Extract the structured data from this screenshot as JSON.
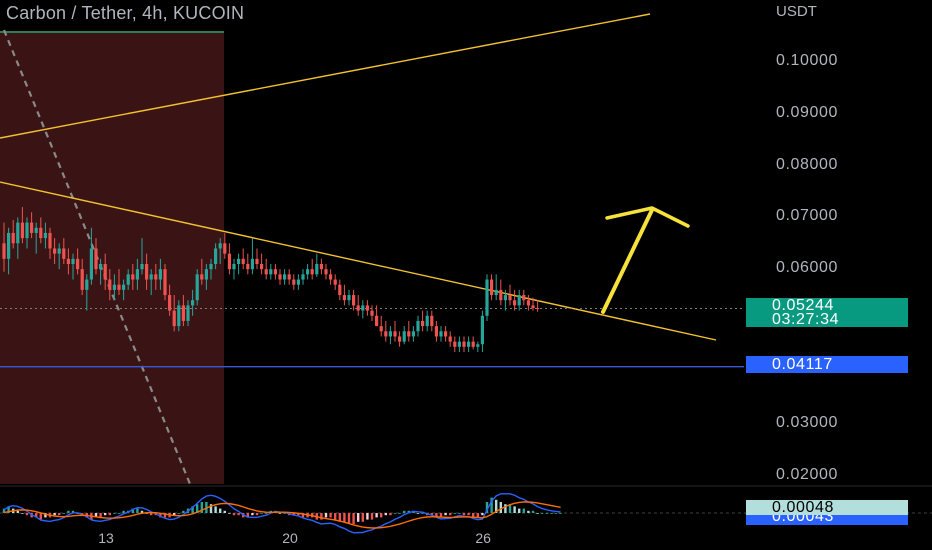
{
  "header": {
    "title": "Carbon / Tether, 4h, KUCOIN",
    "unit": "USDT"
  },
  "colors": {
    "background": "#000000",
    "up": "#26a69a",
    "down": "#ef5350",
    "zone": "#3a1414",
    "zone_top_line": "#2e7d5a",
    "trendline": "#f2c230",
    "arrow": "#f6e23a",
    "support": "#3955d8",
    "price_badge": "#089981",
    "support_badge": "#2962ff",
    "macd": "#2962ff",
    "signal": "#ff6d00"
  },
  "chart_data": {
    "type": "candlestick",
    "title": "Carbon / Tether, 4h, KUCOIN",
    "ylabel": "USDT",
    "ylim": [
      0.0185,
      0.112
    ],
    "y_ticks": [
      "0.10000",
      "0.09000",
      "0.08000",
      "0.07000",
      "0.06000",
      "0.03000",
      "0.02000"
    ],
    "y_tick_values": [
      0.1,
      0.09,
      0.08,
      0.07,
      0.06,
      0.03,
      0.02
    ],
    "x_ticks": [
      "13",
      "20",
      "26"
    ],
    "x_tick_bars": [
      22,
      62,
      104
    ],
    "bars_visible": 126,
    "last_price": {
      "value": "0.05244",
      "countdown": "03:27:34"
    },
    "support_level": {
      "value": "0.04117",
      "level": 0.04117
    },
    "candles": [
      [
        0.065,
        0.069,
        0.0595,
        0.062
      ],
      [
        0.062,
        0.068,
        0.059,
        0.067
      ],
      [
        0.067,
        0.0695,
        0.064,
        0.065
      ],
      [
        0.065,
        0.07,
        0.062,
        0.069
      ],
      [
        0.069,
        0.072,
        0.065,
        0.066
      ],
      [
        0.066,
        0.07,
        0.064,
        0.069
      ],
      [
        0.069,
        0.071,
        0.066,
        0.067
      ],
      [
        0.067,
        0.069,
        0.063,
        0.068
      ],
      [
        0.068,
        0.07,
        0.065,
        0.066
      ],
      [
        0.066,
        0.069,
        0.064,
        0.067
      ],
      [
        0.067,
        0.068,
        0.062,
        0.064
      ],
      [
        0.064,
        0.066,
        0.061,
        0.063
      ],
      [
        0.063,
        0.065,
        0.06,
        0.064
      ],
      [
        0.064,
        0.066,
        0.061,
        0.062
      ],
      [
        0.062,
        0.064,
        0.059,
        0.061
      ],
      [
        0.061,
        0.063,
        0.058,
        0.062
      ],
      [
        0.062,
        0.064,
        0.059,
        0.06
      ],
      [
        0.06,
        0.062,
        0.055,
        0.056
      ],
      [
        0.056,
        0.059,
        0.052,
        0.058
      ],
      [
        0.058,
        0.068,
        0.057,
        0.064
      ],
      [
        0.064,
        0.066,
        0.059,
        0.06
      ],
      [
        0.06,
        0.062,
        0.057,
        0.061
      ],
      [
        0.061,
        0.063,
        0.056,
        0.058
      ],
      [
        0.058,
        0.06,
        0.054,
        0.056
      ],
      [
        0.056,
        0.059,
        0.054,
        0.057
      ],
      [
        0.057,
        0.06,
        0.055,
        0.056
      ],
      [
        0.056,
        0.058,
        0.054,
        0.057
      ],
      [
        0.057,
        0.06,
        0.056,
        0.059
      ],
      [
        0.059,
        0.061,
        0.056,
        0.058
      ],
      [
        0.058,
        0.062,
        0.056,
        0.06
      ],
      [
        0.06,
        0.066,
        0.059,
        0.061
      ],
      [
        0.061,
        0.063,
        0.056,
        0.058
      ],
      [
        0.058,
        0.06,
        0.055,
        0.059
      ],
      [
        0.059,
        0.061,
        0.056,
        0.058
      ],
      [
        0.058,
        0.062,
        0.056,
        0.06
      ],
      [
        0.06,
        0.061,
        0.054,
        0.055
      ],
      [
        0.055,
        0.057,
        0.051,
        0.052
      ],
      [
        0.052,
        0.055,
        0.048,
        0.049
      ],
      [
        0.049,
        0.054,
        0.048,
        0.053
      ],
      [
        0.053,
        0.055,
        0.049,
        0.05
      ],
      [
        0.05,
        0.054,
        0.049,
        0.053
      ],
      [
        0.053,
        0.056,
        0.051,
        0.054
      ],
      [
        0.054,
        0.06,
        0.053,
        0.059
      ],
      [
        0.059,
        0.062,
        0.057,
        0.058
      ],
      [
        0.058,
        0.061,
        0.056,
        0.06
      ],
      [
        0.06,
        0.062,
        0.058,
        0.061
      ],
      [
        0.061,
        0.065,
        0.06,
        0.064
      ],
      [
        0.064,
        0.066,
        0.061,
        0.065
      ],
      [
        0.065,
        0.067,
        0.062,
        0.063
      ],
      [
        0.063,
        0.065,
        0.059,
        0.06
      ],
      [
        0.06,
        0.062,
        0.058,
        0.061
      ],
      [
        0.061,
        0.063,
        0.059,
        0.062
      ],
      [
        0.062,
        0.064,
        0.06,
        0.061
      ],
      [
        0.061,
        0.063,
        0.059,
        0.06
      ],
      [
        0.06,
        0.066,
        0.059,
        0.062
      ],
      [
        0.062,
        0.064,
        0.06,
        0.061
      ],
      [
        0.061,
        0.063,
        0.059,
        0.06
      ],
      [
        0.06,
        0.062,
        0.058,
        0.059
      ],
      [
        0.059,
        0.061,
        0.058,
        0.06
      ],
      [
        0.06,
        0.061,
        0.058,
        0.059
      ],
      [
        0.059,
        0.06,
        0.057,
        0.058
      ],
      [
        0.058,
        0.06,
        0.057,
        0.059
      ],
      [
        0.059,
        0.06,
        0.057,
        0.058
      ],
      [
        0.058,
        0.059,
        0.056,
        0.057
      ],
      [
        0.057,
        0.059,
        0.056,
        0.058
      ],
      [
        0.058,
        0.06,
        0.057,
        0.059
      ],
      [
        0.059,
        0.061,
        0.058,
        0.06
      ],
      [
        0.06,
        0.062,
        0.058,
        0.059
      ],
      [
        0.059,
        0.063,
        0.0585,
        0.061
      ],
      [
        0.061,
        0.062,
        0.059,
        0.06
      ],
      [
        0.06,
        0.061,
        0.058,
        0.059
      ],
      [
        0.059,
        0.06,
        0.057,
        0.058
      ],
      [
        0.058,
        0.059,
        0.056,
        0.057
      ],
      [
        0.057,
        0.058,
        0.054,
        0.055
      ],
      [
        0.055,
        0.057,
        0.053,
        0.054
      ],
      [
        0.054,
        0.056,
        0.053,
        0.055
      ],
      [
        0.055,
        0.056,
        0.052,
        0.053
      ],
      [
        0.053,
        0.055,
        0.051,
        0.052
      ],
      [
        0.052,
        0.054,
        0.0505,
        0.053
      ],
      [
        0.053,
        0.054,
        0.051,
        0.052
      ],
      [
        0.052,
        0.053,
        0.05,
        0.051
      ],
      [
        0.051,
        0.053,
        0.049,
        0.049
      ],
      [
        0.049,
        0.051,
        0.047,
        0.048
      ],
      [
        0.048,
        0.05,
        0.046,
        0.047
      ],
      [
        0.047,
        0.049,
        0.0455,
        0.048
      ],
      [
        0.048,
        0.05,
        0.046,
        0.047
      ],
      [
        0.047,
        0.048,
        0.045,
        0.046
      ],
      [
        0.046,
        0.049,
        0.0455,
        0.048
      ],
      [
        0.048,
        0.05,
        0.046,
        0.047
      ],
      [
        0.047,
        0.049,
        0.046,
        0.048
      ],
      [
        0.048,
        0.051,
        0.047,
        0.05
      ],
      [
        0.05,
        0.052,
        0.048,
        0.049
      ],
      [
        0.049,
        0.052,
        0.048,
        0.051
      ],
      [
        0.051,
        0.052,
        0.048,
        0.049
      ],
      [
        0.049,
        0.05,
        0.046,
        0.047
      ],
      [
        0.047,
        0.049,
        0.046,
        0.048
      ],
      [
        0.048,
        0.049,
        0.046,
        0.047
      ],
      [
        0.047,
        0.048,
        0.045,
        0.046
      ],
      [
        0.046,
        0.047,
        0.044,
        0.045
      ],
      [
        0.045,
        0.047,
        0.044,
        0.046
      ],
      [
        0.046,
        0.047,
        0.044,
        0.045
      ],
      [
        0.045,
        0.047,
        0.044,
        0.046
      ],
      [
        0.046,
        0.047,
        0.0445,
        0.045
      ],
      [
        0.045,
        0.046,
        0.044,
        0.0455
      ],
      [
        0.0455,
        0.052,
        0.044,
        0.051
      ],
      [
        0.051,
        0.059,
        0.05,
        0.058
      ],
      [
        0.058,
        0.059,
        0.054,
        0.055
      ],
      [
        0.055,
        0.059,
        0.054,
        0.056
      ],
      [
        0.056,
        0.058,
        0.053,
        0.054
      ],
      [
        0.054,
        0.056,
        0.052,
        0.055
      ],
      [
        0.055,
        0.057,
        0.053,
        0.054
      ],
      [
        0.054,
        0.056,
        0.052,
        0.053
      ],
      [
        0.053,
        0.056,
        0.052,
        0.055
      ],
      [
        0.055,
        0.056,
        0.053,
        0.054
      ],
      [
        0.054,
        0.055,
        0.052,
        0.053
      ],
      [
        0.053,
        0.0545,
        0.052,
        0.0525
      ],
      [
        0.0525,
        0.054,
        0.0518,
        0.0524
      ]
    ]
  },
  "macd_panel": {
    "values": [
      "0.00048",
      "0.00043"
    ],
    "hist": [
      2,
      3,
      2,
      1,
      0,
      -1,
      -2,
      -2,
      -3,
      -2,
      -2,
      -1,
      -1,
      0,
      1,
      1,
      0,
      -1,
      -2,
      -3,
      -2,
      -2,
      -1,
      -1,
      0,
      0,
      1,
      1,
      2,
      2,
      1,
      0,
      -1,
      -1,
      -2,
      -2,
      -2,
      -1,
      0,
      1,
      2,
      3,
      4,
      5,
      5,
      4,
      3,
      2,
      1,
      0,
      -1,
      -1,
      -2,
      -2,
      -1,
      -1,
      0,
      0,
      1,
      1,
      0,
      0,
      -1,
      -1,
      -1,
      -2,
      -2,
      -2,
      -3,
      -3,
      -2,
      -2,
      -3,
      -4,
      -4,
      -5,
      -5,
      -4,
      -4,
      -3,
      -3,
      -2,
      -2,
      -1,
      -1,
      0,
      0,
      1,
      1,
      1,
      0,
      0,
      -1,
      -1,
      -2,
      -2,
      -1,
      -1,
      0,
      0,
      -1,
      -1,
      -2,
      -2,
      -1,
      5,
      7,
      6,
      5,
      4,
      4,
      3,
      2,
      2,
      1,
      1,
      0,
      0,
      0,
      0,
      0,
      0
    ]
  }
}
